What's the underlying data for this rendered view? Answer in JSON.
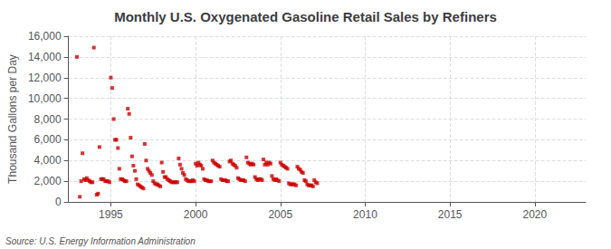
{
  "chart_data": {
    "type": "scatter",
    "title": "Monthly U.S. Oxygenated Gasoline Retail Sales by Refiners",
    "ylabel": "Thousand Gallons per Day",
    "source": "Source: U.S. Energy Information Administration",
    "color": "#cc0000",
    "marker": "square",
    "grid": true,
    "xlim": [
      1992.5,
      2023
    ],
    "xticks": [
      1995,
      2000,
      2005,
      2010,
      2015,
      2020
    ],
    "ylim": [
      0,
      16000
    ],
    "yticks": [
      0,
      {
        "value": 2000,
        "label": "2,000"
      },
      {
        "value": 4000,
        "label": "4,000"
      },
      {
        "value": 6000,
        "label": "6,000"
      },
      {
        "value": 8000,
        "label": "8,000"
      },
      {
        "value": 10000,
        "label": "10,000"
      },
      {
        "value": 12000,
        "label": "12,000"
      },
      {
        "value": 14000,
        "label": "14,000"
      },
      {
        "value": 16000,
        "label": "16,000"
      }
    ],
    "x": [
      1993.0,
      1993.17,
      1993.25,
      1993.33,
      1993.42,
      1993.5,
      1993.58,
      1993.67,
      1993.75,
      1993.83,
      1993.92,
      1994.0,
      1994.17,
      1994.25,
      1994.33,
      1994.42,
      1994.5,
      1994.58,
      1994.67,
      1994.75,
      1994.83,
      1994.92,
      1995.0,
      1995.08,
      1995.17,
      1995.25,
      1995.33,
      1995.42,
      1995.5,
      1995.58,
      1995.67,
      1995.75,
      1995.83,
      1995.92,
      1996.0,
      1996.08,
      1996.17,
      1996.25,
      1996.33,
      1996.42,
      1996.5,
      1996.58,
      1996.67,
      1996.75,
      1996.83,
      1996.92,
      1997.0,
      1997.08,
      1997.17,
      1997.25,
      1997.33,
      1997.42,
      1997.5,
      1997.58,
      1997.67,
      1997.75,
      1997.83,
      1997.92,
      1998.0,
      1998.08,
      1998.17,
      1998.25,
      1998.33,
      1998.42,
      1998.5,
      1998.58,
      1998.67,
      1998.75,
      1998.83,
      1998.92,
      1999.0,
      1999.08,
      1999.17,
      1999.25,
      1999.33,
      1999.42,
      1999.5,
      1999.58,
      1999.67,
      1999.75,
      1999.83,
      1999.92,
      2000.0,
      2000.08,
      2000.17,
      2000.25,
      2000.33,
      2000.42,
      2000.5,
      2000.58,
      2000.67,
      2000.75,
      2000.83,
      2000.92,
      2001.0,
      2001.08,
      2001.17,
      2001.25,
      2001.33,
      2001.42,
      2001.5,
      2001.58,
      2001.67,
      2001.75,
      2001.83,
      2001.92,
      2002.0,
      2002.08,
      2002.17,
      2002.25,
      2002.33,
      2002.42,
      2002.5,
      2002.58,
      2002.67,
      2002.75,
      2002.83,
      2002.92,
      2003.0,
      2003.08,
      2003.17,
      2003.25,
      2003.33,
      2003.42,
      2003.5,
      2003.58,
      2003.67,
      2003.75,
      2003.83,
      2003.92,
      2004.0,
      2004.08,
      2004.17,
      2004.25,
      2004.33,
      2004.42,
      2004.5,
      2004.58,
      2004.67,
      2004.75,
      2004.83,
      2004.92,
      2005.0,
      2005.08,
      2005.17,
      2005.25,
      2005.33,
      2005.42,
      2005.5,
      2005.58,
      2005.67,
      2005.75,
      2005.83,
      2005.92,
      2006.0,
      2006.08,
      2006.17,
      2006.25,
      2006.33,
      2006.42,
      2006.5,
      2006.58,
      2006.67,
      2006.75,
      2006.83,
      2006.92,
      2007.0,
      2007.08,
      2007.17
    ],
    "values": [
      14000,
      500,
      2000,
      4700,
      2200,
      2100,
      2300,
      2100,
      2000,
      1900,
      1900,
      14900,
      700,
      800,
      5300,
      2200,
      2200,
      2200,
      2000,
      2000,
      2000,
      1900,
      12000,
      11000,
      8000,
      6000,
      6000,
      5200,
      3200,
      2200,
      2200,
      2100,
      2000,
      2000,
      9000,
      8500,
      6200,
      4400,
      3500,
      3000,
      2200,
      1700,
      1600,
      1500,
      1400,
      1300,
      5600,
      4000,
      3200,
      3000,
      2800,
      2600,
      2000,
      1800,
      1700,
      1700,
      1600,
      1500,
      3800,
      2900,
      2400,
      2400,
      2200,
      2100,
      2000,
      1900,
      1900,
      1900,
      1900,
      1900,
      4200,
      3600,
      3200,
      2800,
      2600,
      2200,
      2100,
      2000,
      2000,
      2000,
      2100,
      2000,
      3700,
      3500,
      3800,
      3600,
      3500,
      3200,
      2200,
      2100,
      2100,
      2000,
      2000,
      2000,
      4000,
      3800,
      3700,
      3600,
      3500,
      3400,
      2200,
      2100,
      2100,
      2100,
      2000,
      2000,
      3900,
      4000,
      3700,
      3600,
      3500,
      3300,
      2300,
      2200,
      2100,
      2100,
      2100,
      2000,
      4300,
      3800,
      3700,
      3600,
      3700,
      3600,
      2400,
      2200,
      2100,
      2200,
      2200,
      2100,
      4100,
      3600,
      3800,
      3600,
      3800,
      3700,
      2500,
      2200,
      2100,
      2200,
      2100,
      2000,
      3800,
      3600,
      3500,
      3400,
      3300,
      3200,
      1800,
      1700,
      1700,
      1700,
      1700,
      1600,
      3400,
      3200,
      3100,
      2900,
      2800,
      2100,
      2000,
      1700,
      1600,
      1600,
      1600,
      1500,
      2100,
      1900,
      1800
    ]
  }
}
